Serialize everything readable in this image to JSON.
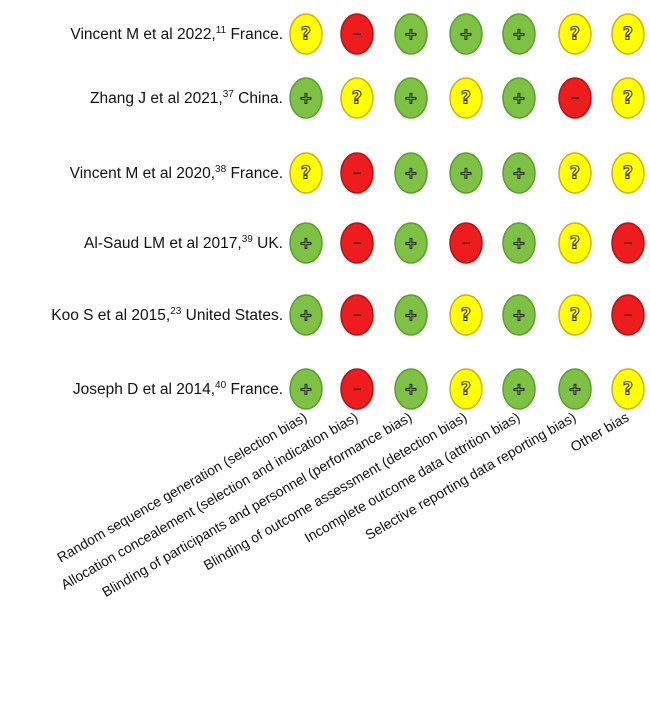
{
  "studies": [
    {
      "author": "Vincent M et al 2022,",
      "ref": "11",
      "country": "France."
    },
    {
      "author": "Zhang J et al 2021,",
      "ref": "37",
      "country": "China."
    },
    {
      "author": "Vincent M et al 2020,",
      "ref": "38",
      "country": "France."
    },
    {
      "author": "Al-Saud LM et al 2017,",
      "ref": "39",
      "country": "UK."
    },
    {
      "author": "Koo S et al 2015,",
      "ref": "23",
      "country": "United States."
    },
    {
      "author": "Joseph D et al 2014,",
      "ref": "40",
      "country": "France."
    }
  ],
  "domains": [
    "Random sequence generation (selection bias)",
    "Allocation concealement (selection and indication bias)",
    "Blinding of participants and personnel (performance bias)",
    "Blinding of outcome assessment (detection bias)",
    "Incomplete outcome data (attrition bias)",
    "Selective reporting data reporting bias)",
    "Other bias"
  ],
  "judgements": [
    [
      "unclear",
      "high",
      "low",
      "low",
      "low",
      "unclear",
      "unclear"
    ],
    [
      "low",
      "unclear",
      "low",
      "unclear",
      "low",
      "high",
      "unclear"
    ],
    [
      "unclear",
      "high",
      "low",
      "low",
      "low",
      "unclear",
      "unclear"
    ],
    [
      "low",
      "high",
      "low",
      "high",
      "low",
      "unclear",
      "high"
    ],
    [
      "low",
      "high",
      "low",
      "unclear",
      "low",
      "unclear",
      "high"
    ],
    [
      "low",
      "high",
      "low",
      "unclear",
      "low",
      "low",
      "unclear"
    ]
  ],
  "legend": {
    "low": {
      "symbol": "+",
      "fill": "#7dc242",
      "stroke": "#5a9e2e"
    },
    "high": {
      "symbol": "−",
      "fill": "#ee1c1c",
      "stroke": "#b51212"
    },
    "unclear": {
      "symbol": "?",
      "fill": "#ffff00",
      "stroke": "#d4b000"
    }
  }
}
